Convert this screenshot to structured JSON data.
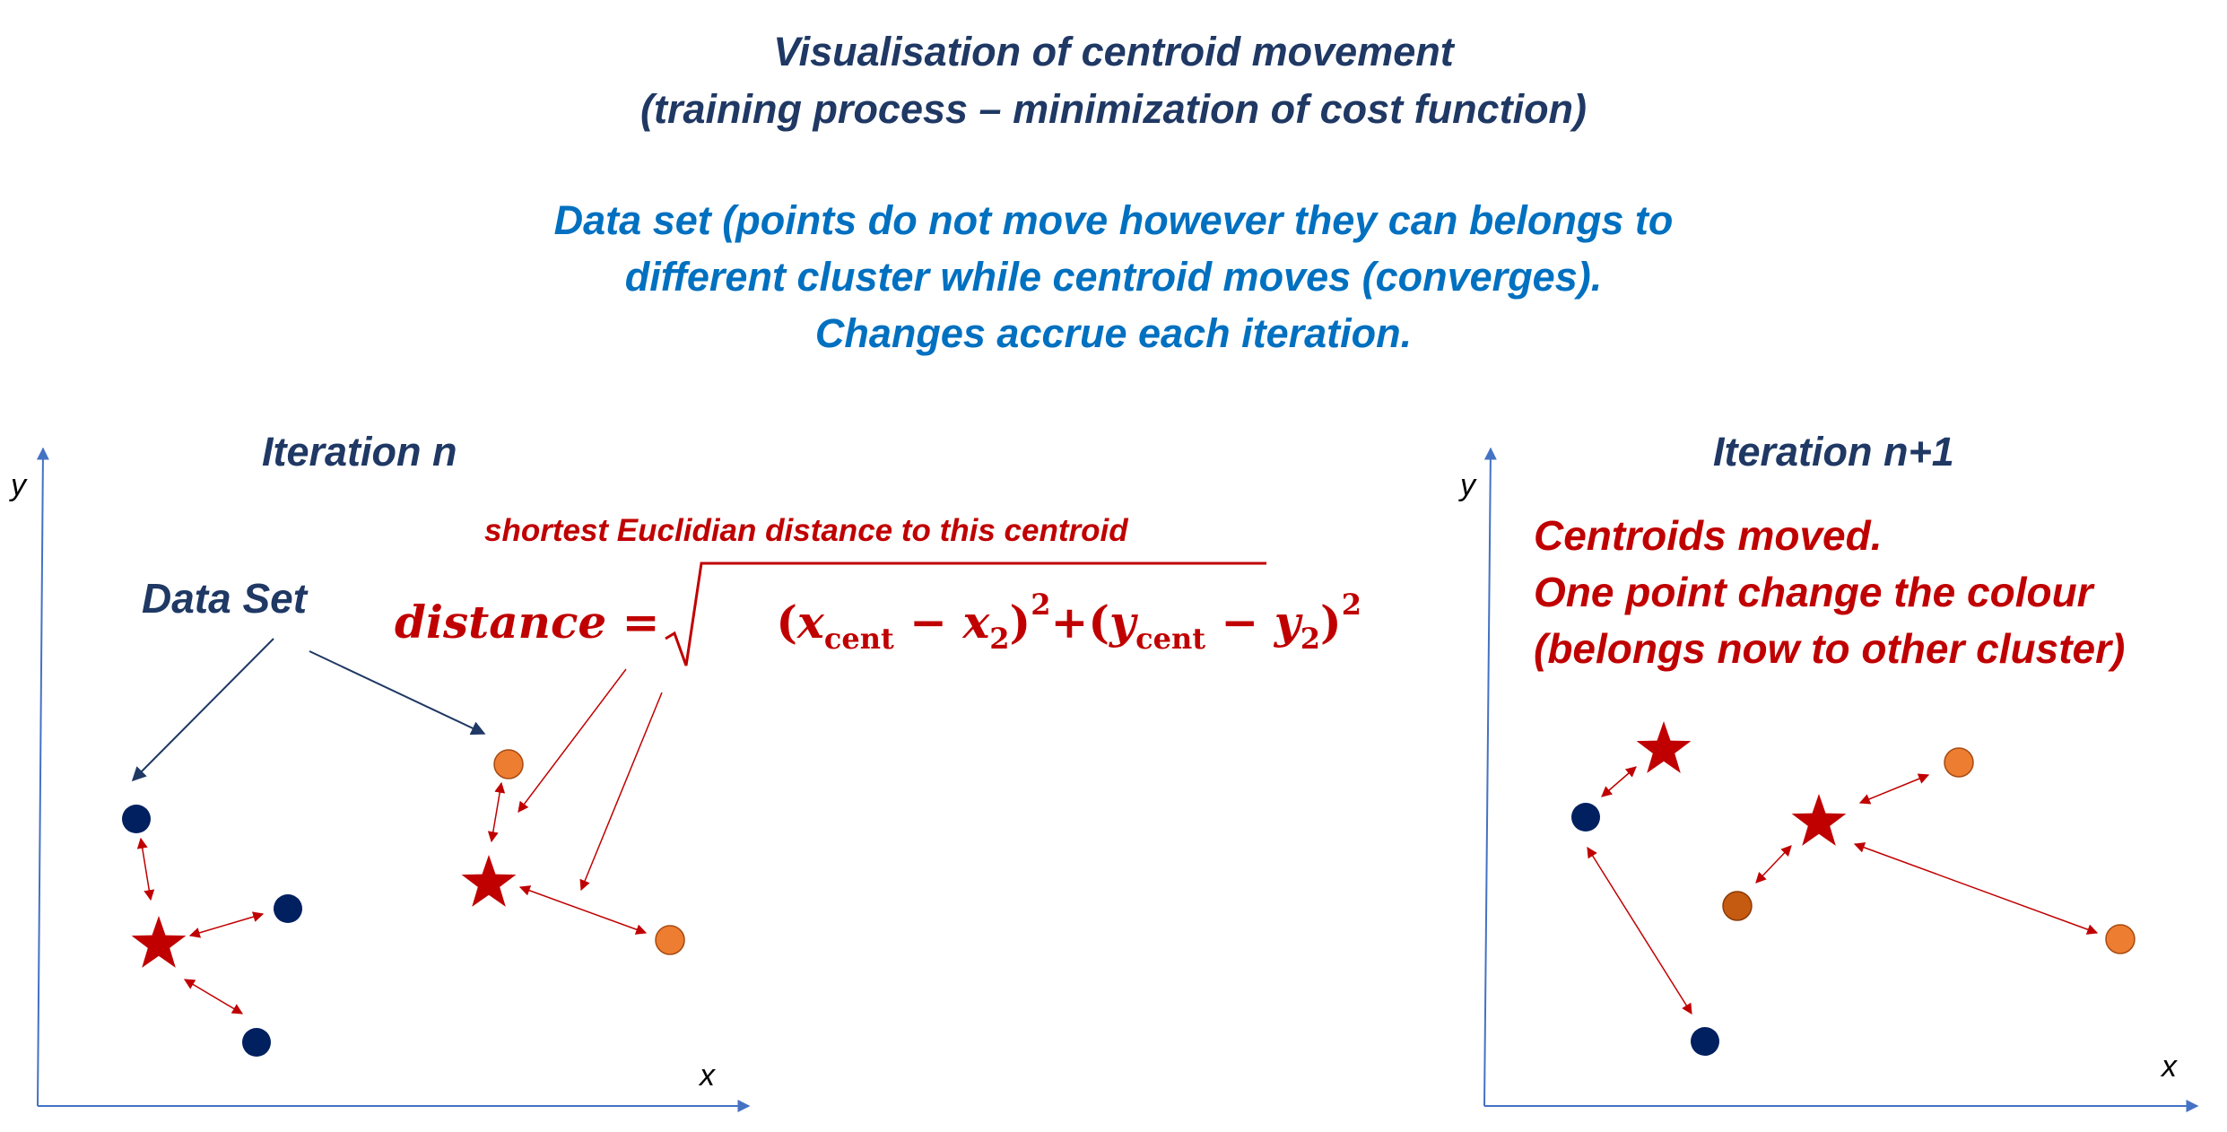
{
  "title_line1": "Visualisation of centroid movement",
  "title_line2": "(training process – minimization of cost function)",
  "desc_line1": "Data set (points do not move however they can belongs to",
  "desc_line2": "different cluster while centroid moves (converges).",
  "desc_line3": "Changes accrue each iteration.",
  "left_panel": {
    "heading": "Iteration n",
    "y_label": "y",
    "x_label": "x",
    "data_set_label": "Data Set",
    "distance_note": "shortest Euclidian distance to this  centroid",
    "formula": {
      "lhs": "distance =",
      "x_cent": "x",
      "x_cent_sub": "cent",
      "x2": "x",
      "x2_sub": "2",
      "y_cent": "y",
      "y_cent_sub": "cent",
      "y2": "y",
      "y2_sub": "2",
      "power": "2"
    }
  },
  "right_panel": {
    "heading": "Iteration n+1",
    "y_label": "y",
    "x_label": "x",
    "note_line1": "Centroids  moved.",
    "note_line2": "One point change the colour",
    "note_line3": "(belongs now to other cluster)"
  },
  "colors": {
    "navy": "#1f3864",
    "blue": "#0070c0",
    "red": "#c00000",
    "point_navy": "#002060",
    "point_orange": "#ed7d31",
    "point_orange_dark": "#c55a11",
    "axis": "#4472c4"
  }
}
